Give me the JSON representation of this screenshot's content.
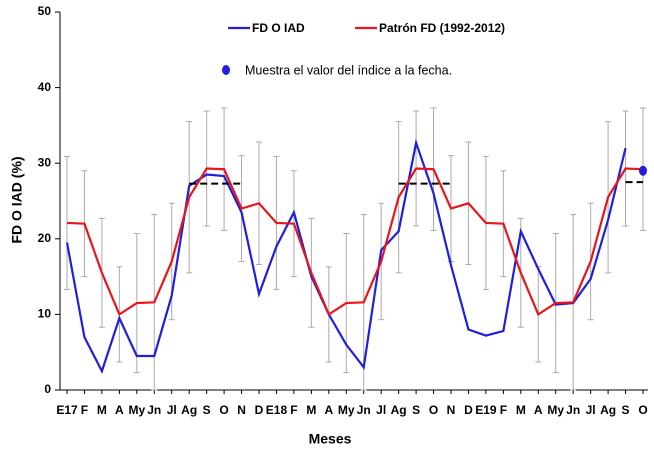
{
  "chart_data": {
    "type": "line",
    "x_label": "Meses",
    "y_label": "FD O IAD (%)",
    "categories": [
      "E17",
      "F",
      "M",
      "A",
      "My",
      "Jn",
      "Jl",
      "Ag",
      "S",
      "O",
      "N",
      "D",
      "E18",
      "F",
      "M",
      "A",
      "My",
      "Jn",
      "Jl",
      "Ag",
      "S",
      "O",
      "N",
      "D",
      "E19",
      "F",
      "M",
      "A",
      "My",
      "Jn",
      "Jl",
      "Ag",
      "S",
      "O"
    ],
    "ylim": [
      0,
      50
    ],
    "yticks": [
      0,
      10,
      20,
      30,
      40,
      50
    ],
    "series": [
      {
        "name": "FD O IAD",
        "color": "#1f1fdc",
        "values": [
          19.5,
          7,
          2.5,
          9.5,
          4.5,
          4.5,
          12.5,
          27,
          28.5,
          28.3,
          23.5,
          12.7,
          19,
          23.5,
          15,
          10,
          6,
          3,
          18.5,
          21,
          32.7,
          26,
          16.5,
          8,
          7.2,
          7.8,
          21,
          16,
          11.3,
          11.5,
          14.7,
          22.5,
          32,
          null
        ]
      },
      {
        "name": "Patrón FD (1992-2012)",
        "color": "#e8161b",
        "values": [
          22.1,
          22,
          15.5,
          10,
          11.5,
          11.6,
          17,
          25.5,
          29.3,
          29.2,
          24,
          24.7,
          22.1,
          22,
          15.5,
          10,
          11.5,
          11.6,
          17,
          25.5,
          29.3,
          29.2,
          24,
          24.7,
          22.1,
          22,
          15.5,
          10,
          11.5,
          11.6,
          17,
          25.5,
          29.3,
          29.2
        ],
        "errors": [
          8.8,
          7,
          7.2,
          6.3,
          9.2,
          11.6,
          7.7,
          10,
          7.6,
          8.1,
          7,
          8.1,
          8.8,
          7,
          7.2,
          6.3,
          9.2,
          11.6,
          7.7,
          10,
          7.6,
          8.1,
          7,
          8.1,
          8.8,
          7,
          7.2,
          6.3,
          9.2,
          11.6,
          7.7,
          10,
          7.6,
          8.1
        ],
        "error_color": "#aaaaaa"
      },
      {
        "color": "#000000",
        "dash": true,
        "values": [
          null,
          null,
          null,
          null,
          null,
          null,
          null,
          27.3,
          27.3,
          27.3,
          27.3,
          null,
          null,
          null,
          null,
          null,
          null,
          null,
          null,
          27.3,
          27.3,
          27.3,
          27.3,
          null,
          null,
          null,
          null,
          null,
          null,
          null,
          null,
          null,
          27.5,
          27.5
        ]
      },
      {
        "name": "Muestra el valor del índice a la fecha.",
        "color": "#1f1fdc",
        "marker": "dot",
        "values": [
          null,
          null,
          null,
          null,
          null,
          null,
          null,
          null,
          null,
          null,
          null,
          null,
          null,
          null,
          null,
          null,
          null,
          null,
          null,
          null,
          null,
          null,
          null,
          null,
          null,
          null,
          null,
          null,
          null,
          null,
          null,
          null,
          null,
          29
        ]
      }
    ]
  }
}
